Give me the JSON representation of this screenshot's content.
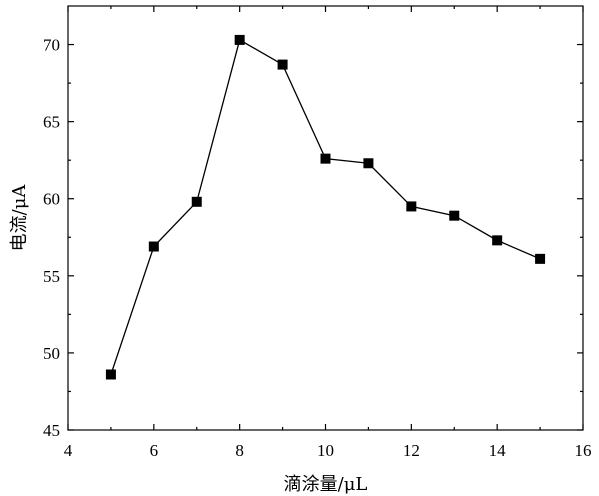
{
  "chart_data": {
    "type": "line",
    "title": "",
    "xlabel": "滴涂量/μL",
    "ylabel": "电流/μA",
    "xlim": [
      4,
      16
    ],
    "ylim": [
      45,
      72.5
    ],
    "xticks": [
      4,
      6,
      8,
      10,
      12,
      14,
      16
    ],
    "yticks": [
      45,
      50,
      55,
      60,
      65,
      70
    ],
    "grid": false,
    "legend": "none",
    "marker": "square",
    "series_color": "#000000",
    "series": [
      {
        "x": [
          5,
          6,
          7,
          8,
          9,
          10,
          11,
          12,
          13,
          14,
          15
        ],
        "values": [
          48.6,
          56.9,
          59.8,
          70.3,
          68.7,
          62.6,
          62.3,
          59.5,
          58.9,
          57.3,
          56.1
        ]
      }
    ]
  }
}
